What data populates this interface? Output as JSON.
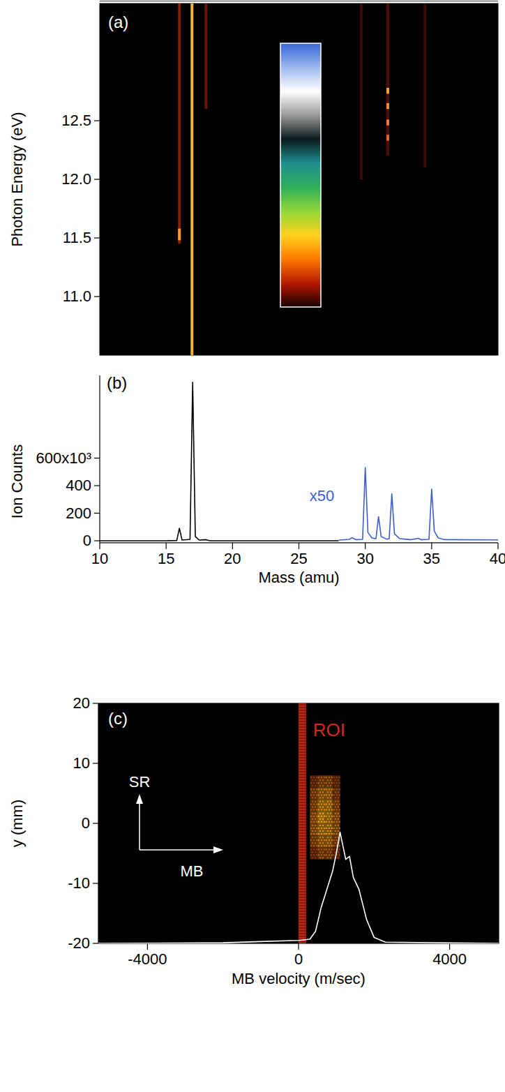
{
  "chart_data": [
    {
      "type": "heatmap",
      "panel_label": "(a)",
      "y_label": "Photon Energy (eV)",
      "xlim": [
        10,
        40
      ],
      "ylim": [
        10.5,
        13.5
      ],
      "yticks": [
        {
          "value": 11,
          "label": "11.0"
        },
        {
          "value": 11.5,
          "label": "11.5"
        },
        {
          "value": 12,
          "label": "12.0"
        },
        {
          "value": 12.5,
          "label": "12.5"
        }
      ],
      "tick_labels": "y",
      "lines": [
        {
          "mass": 16.0,
          "energy": [
            11.45,
            13.5
          ],
          "color": "#8a1c06"
        },
        {
          "mass": 16.0,
          "energy": [
            11.48,
            11.58
          ],
          "color": "#ff9a2a"
        },
        {
          "mass": 16.95,
          "energy": [
            10.5,
            13.5
          ],
          "color": "#f3b43a"
        },
        {
          "mass": 18.0,
          "energy": [
            12.6,
            13.5
          ],
          "color": "#6e1205"
        },
        {
          "mass": 29.7,
          "energy": [
            12.0,
            13.5
          ],
          "color": "#3a0a02"
        },
        {
          "mass": 31.7,
          "energy": [
            12.2,
            13.5
          ],
          "color": "#4e0c03"
        },
        {
          "mass": 31.7,
          "energy": [
            12.33,
            12.38
          ],
          "color": "#e8642a"
        },
        {
          "mass": 31.7,
          "energy": [
            12.46,
            12.51
          ],
          "color": "#f07a30"
        },
        {
          "mass": 31.7,
          "energy": [
            12.6,
            12.65
          ],
          "color": "#f28a34"
        },
        {
          "mass": 31.7,
          "energy": [
            12.73,
            12.78
          ],
          "color": "#f59a3a"
        },
        {
          "mass": 34.5,
          "energy": [
            12.1,
            13.5
          ],
          "color": "#360802"
        }
      ],
      "color_bar": {
        "colors": [
          "#1a0000",
          "#b51a00",
          "#ff7a00",
          "#ffd21a",
          "#8fd63a",
          "#2fae5a",
          "#1f8f8f",
          "#0a1a1a",
          "#9a9a9a",
          "#ffffff",
          "#9ab8ee",
          "#3a66d8"
        ]
      }
    },
    {
      "type": "line",
      "panel_label": "(b)",
      "x_label": "Mass (amu)",
      "y_label": "Ion Counts",
      "xlim": [
        10,
        40
      ],
      "ylim": [
        -15000,
        1200000
      ],
      "xticks": [
        10,
        15,
        20,
        25,
        30,
        35,
        40
      ],
      "yticks": [
        0,
        {
          "value": 200000,
          "label": "200"
        },
        {
          "value": 400000,
          "label": "400"
        },
        {
          "value": 600000,
          "label": "600x10³"
        }
      ],
      "series": [
        {
          "color": "#000000",
          "x": [
            10,
            15,
            15.8,
            16,
            16.2,
            16.8,
            17,
            17.2,
            17.5,
            18,
            18.3,
            28
          ],
          "values": [
            0,
            0,
            2000,
            91000,
            5000,
            10000,
            1150000,
            30000,
            5000,
            8000,
            0,
            0
          ]
        },
        {
          "color": "#3a5fcd",
          "x": [
            28,
            28.8,
            29,
            29.3,
            29.8,
            30,
            30.2,
            30.5,
            30.8,
            31,
            31.2,
            31.6,
            31.8,
            32,
            32.2,
            32.6,
            33,
            33.4,
            34,
            34.2,
            34.8,
            35,
            35.2,
            35.5,
            36,
            40
          ],
          "values": [
            5000,
            10000,
            22000,
            8000,
            10000,
            532000,
            60000,
            20000,
            15000,
            175000,
            30000,
            12000,
            15000,
            340000,
            50000,
            15000,
            12000,
            8000,
            18000,
            8000,
            10000,
            375000,
            70000,
            20000,
            8000,
            6000
          ]
        }
      ],
      "annotations": [
        {
          "text": "x50",
          "x": 25.8,
          "y": 290000,
          "color": "#3a5fcd"
        }
      ]
    },
    {
      "type": "image",
      "panel_label": "(c)",
      "x_label": "MB velocity (m/sec)",
      "y_label": "y (mm)",
      "xlim": [
        -5300,
        5300
      ],
      "ylim": [
        -20,
        20
      ],
      "xticks": [
        -4000,
        0,
        4000
      ],
      "yticks": [
        -20,
        -10,
        0,
        10,
        20
      ],
      "roi": {
        "label": "ROI",
        "range": [
          0,
          200
        ],
        "color": "#d8261c"
      },
      "cells": {
        "x_edges": [
          300,
          500,
          700,
          900,
          1100
        ],
        "y_edges": [
          -6,
          -4,
          -2,
          0,
          2,
          4,
          6,
          8
        ],
        "values": [
          [
            0.3,
            0.5,
            0.5,
            0.3
          ],
          [
            0.5,
            0.7,
            0.7,
            0.5
          ],
          [
            0.6,
            0.8,
            0.8,
            0.6
          ],
          [
            0.6,
            0.9,
            0.8,
            0.6
          ],
          [
            0.5,
            0.8,
            0.8,
            0.5
          ],
          [
            0.5,
            0.7,
            0.7,
            0.4
          ],
          [
            0.3,
            0.5,
            0.5,
            0.3
          ]
        ]
      },
      "series": [
        {
          "color": "#ffffff",
          "x": [
            -5300,
            -2000,
            -1000,
            0,
            300,
            450,
            600,
            800,
            900,
            1000,
            1100,
            1150,
            1250,
            1350,
            1450,
            1600,
            1800,
            2000,
            2300,
            5300
          ],
          "values": [
            -20,
            -19.9,
            -19.7,
            -19.5,
            -19.3,
            -18,
            -14,
            -10,
            -8,
            -5,
            -1.5,
            -3,
            -6,
            -5.5,
            -9,
            -11,
            -16,
            -19,
            -19.8,
            -20
          ]
        }
      ],
      "arrows": [
        {
          "label": "SR"
        },
        {
          "label": "MB"
        }
      ]
    }
  ]
}
